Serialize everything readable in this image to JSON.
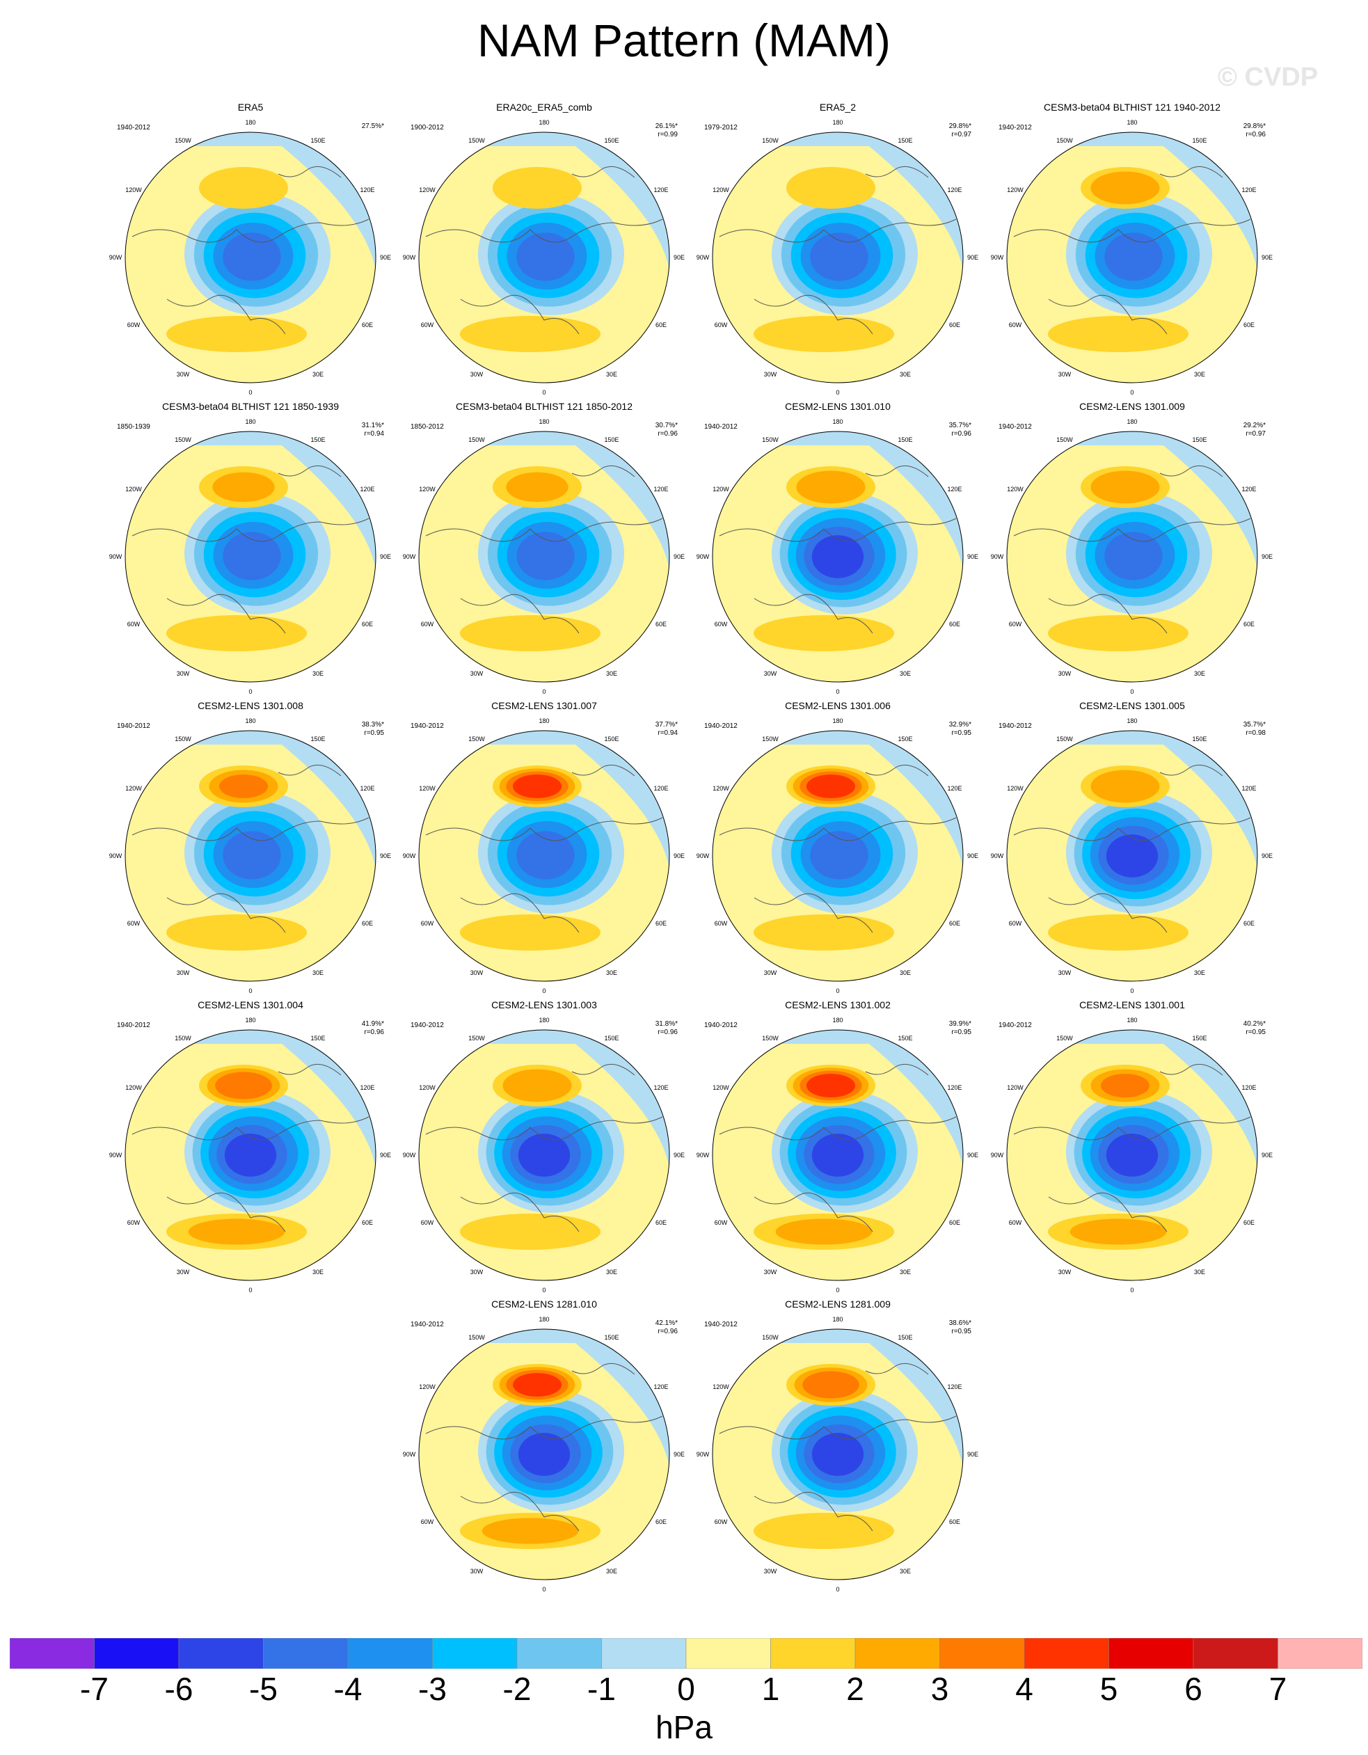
{
  "title": "NAM Pattern (MAM)",
  "watermark": "© CVDP",
  "lon_labels": {
    "top": "180",
    "bottom": "0",
    "left_upper": "150W",
    "right_upper": "150E",
    "left_mid_upper": "120W",
    "right_mid_upper": "120E",
    "left_mid": "90W",
    "right_mid": "90E",
    "left_mid_lower": "60W",
    "right_mid_lower": "60E",
    "left_lower": "30W",
    "right_lower": "30E"
  },
  "panels": [
    {
      "title": "ERA5",
      "years": "1940-2012",
      "var": "27.5%*",
      "r": "",
      "high_amp": 1.5,
      "low_amp": 5.0,
      "atl": 1.5
    },
    {
      "title": "ERA20c_ERA5_comb",
      "years": "1900-2012",
      "var": "26.1%*",
      "r": "r=0.99",
      "high_amp": 1.0,
      "low_amp": 4.5,
      "atl": 1.2
    },
    {
      "title": "ERA5_2",
      "years": "1979-2012",
      "var": "29.8%*",
      "r": "r=0.97",
      "high_amp": 1.5,
      "low_amp": 5.0,
      "atl": 1.5
    },
    {
      "title": "CESM3-beta04 BLTHIST 121 1940-2012",
      "years": "1940-2012",
      "var": "29.8%*",
      "r": "r=0.96",
      "high_amp": 2.5,
      "low_amp": 4.5,
      "atl": 1.5
    },
    {
      "title": "CESM3-beta04 BLTHIST 121 1850-1939",
      "years": "1850-1939",
      "var": "31.1%*",
      "r": "r=0.94",
      "high_amp": 1.8,
      "low_amp": 5.0,
      "atl": 1.2
    },
    {
      "title": "CESM3-beta04 BLTHIST 121 1850-2012",
      "years": "1850-2012",
      "var": "30.7%*",
      "r": "r=0.96",
      "high_amp": 1.8,
      "low_amp": 4.5,
      "atl": 1.2
    },
    {
      "title": "CESM2-LENS 1301.010",
      "years": "1940-2012",
      "var": "35.7%*",
      "r": "r=0.96",
      "high_amp": 2.5,
      "low_amp": 6.0,
      "atl": 1.2
    },
    {
      "title": "CESM2-LENS 1301.009",
      "years": "1940-2012",
      "var": "29.2%*",
      "r": "r=0.97",
      "high_amp": 2.5,
      "low_amp": 4.5,
      "atl": 1.2
    },
    {
      "title": "CESM2-LENS 1301.008",
      "years": "1940-2012",
      "var": "38.3%*",
      "r": "r=0.95",
      "high_amp": 3.0,
      "low_amp": 5.0,
      "atl": 1.5
    },
    {
      "title": "CESM2-LENS 1301.007",
      "years": "1940-2012",
      "var": "37.7%*",
      "r": "r=0.94",
      "high_amp": 4.5,
      "low_amp": 5.0,
      "atl": 1.3
    },
    {
      "title": "CESM2-LENS 1301.006",
      "years": "1940-2012",
      "var": "32.9%*",
      "r": "r=0.95",
      "high_amp": 4.2,
      "low_amp": 5.0,
      "atl": 1.3
    },
    {
      "title": "CESM2-LENS 1301.005",
      "years": "1940-2012",
      "var": "35.7%*",
      "r": "r=0.98",
      "high_amp": 2.5,
      "low_amp": 5.5,
      "atl": 1.5
    },
    {
      "title": "CESM2-LENS 1301.004",
      "years": "1940-2012",
      "var": "41.9%*",
      "r": "r=0.96",
      "high_amp": 3.5,
      "low_amp": 6.0,
      "atl": 2.0
    },
    {
      "title": "CESM2-LENS 1301.003",
      "years": "1940-2012",
      "var": "31.8%*",
      "r": "r=0.96",
      "high_amp": 2.5,
      "low_amp": 5.5,
      "atl": 1.5
    },
    {
      "title": "CESM2-LENS 1301.002",
      "years": "1940-2012",
      "var": "39.9%*",
      "r": "r=0.95",
      "high_amp": 4.2,
      "low_amp": 5.5,
      "atl": 2.0
    },
    {
      "title": "CESM2-LENS 1301.001",
      "years": "1940-2012",
      "var": "40.2%*",
      "r": "r=0.95",
      "high_amp": 3.0,
      "low_amp": 5.5,
      "atl": 2.0
    },
    {
      "title": "CESM2-LENS 1281.010",
      "years": "1940-2012",
      "var": "42.1%*",
      "r": "r=0.96",
      "high_amp": 4.5,
      "low_amp": 6.0,
      "atl": 1.8
    },
    {
      "title": "CESM2-LENS 1281.009",
      "years": "1940-2012",
      "var": "38.6%*",
      "r": "r=0.95",
      "high_amp": 3.5,
      "low_amp": 5.5,
      "atl": 1.5
    }
  ],
  "colorbar": {
    "unit": "hPa",
    "ticks": [
      "-7",
      "-6",
      "-5",
      "-4",
      "-3",
      "-2",
      "-1",
      "0",
      "1",
      "2",
      "3",
      "4",
      "5",
      "6",
      "7"
    ],
    "colors": [
      "#8a2be2",
      "#1a10f5",
      "#2d45e6",
      "#3472e8",
      "#1e90f0",
      "#00bfff",
      "#6ec6f0",
      "#b3ddf2",
      "#fff59a",
      "#ffd42b",
      "#ffaa00",
      "#ff7a00",
      "#ff3300",
      "#e60000",
      "#cc1a1a",
      "#ffb3b3"
    ]
  }
}
